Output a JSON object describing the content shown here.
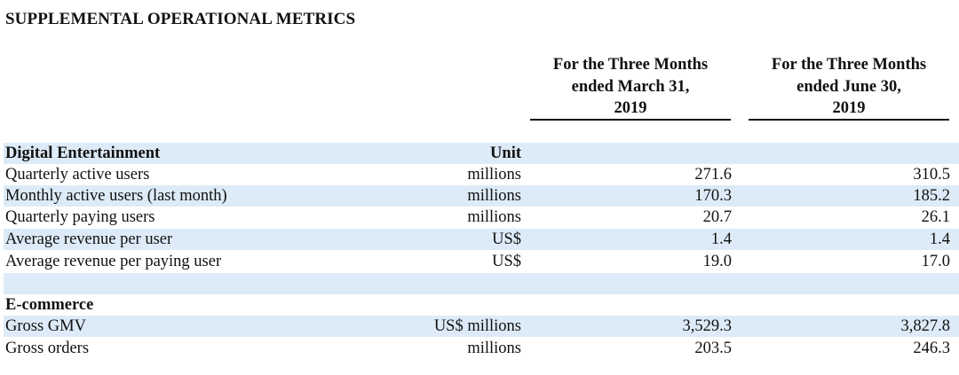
{
  "title": "SUPPLEMENTAL OPERATIONAL METRICS",
  "columns": {
    "col1": [
      "For the Three Months",
      "ended March 31,",
      "2019"
    ],
    "col2": [
      "For the Three Months",
      "ended June 30,",
      "2019"
    ]
  },
  "sections": {
    "digital": {
      "header": "Digital Entertainment",
      "unit_header": "Unit",
      "rows": [
        {
          "label": "Quarterly active users",
          "unit": "millions",
          "v1": "271.6",
          "v2": "310.5"
        },
        {
          "label": "Monthly active users (last month)",
          "unit": "millions",
          "v1": "170.3",
          "v2": "185.2"
        },
        {
          "label": "Quarterly paying users",
          "unit": "millions",
          "v1": "20.7",
          "v2": "26.1"
        },
        {
          "label": "Average revenue per user",
          "unit": "US$",
          "v1": "1.4",
          "v2": "1.4"
        },
        {
          "label": "Average revenue per paying user",
          "unit": "US$",
          "v1": "19.0",
          "v2": "17.0"
        }
      ]
    },
    "ecommerce": {
      "header": "E-commerce",
      "rows": [
        {
          "label": "Gross GMV",
          "unit": "US$ millions",
          "v1": "3,529.3",
          "v2": "3,827.8"
        },
        {
          "label": "Gross orders",
          "unit": "millions",
          "v1": "203.5",
          "v2": "246.3"
        }
      ]
    }
  },
  "colors": {
    "row_shade": "#dcebf7",
    "text": "#111111"
  }
}
